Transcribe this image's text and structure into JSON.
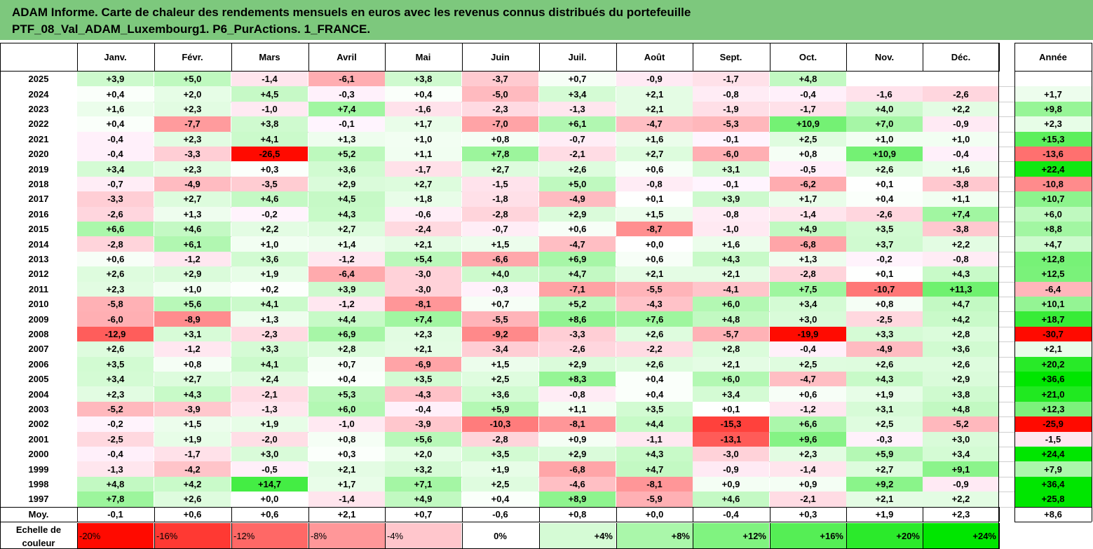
{
  "title": {
    "line1": "ADAM Informe. Carte de chaleur des rendements mensuels en euros avec les revenus connus distribués du portefeuille",
    "line2": "PTF_08_Val_ADAM_Luxembourg1. P6_PurActions. 1_FRANCE."
  },
  "colors": {
    "title_bg": "#7dc87d",
    "neg_max": "#ff0000",
    "pos_max": "#00e600",
    "neutral": "#ffffff"
  },
  "chart_data": {
    "type": "heatmap",
    "columns": [
      "Janv.",
      "Févr.",
      "Mars",
      "Avril",
      "Mai",
      "Juin",
      "Juil.",
      "Août",
      "Sept.",
      "Oct.",
      "Nov.",
      "Déc."
    ],
    "year_column": "Année",
    "rows": [
      {
        "label": "2025",
        "values": [
          "+3,9",
          "+5,0",
          "-1,4",
          "-6,1",
          "+3,8",
          "-3,7",
          "+0,7",
          "-0,9",
          "-1,7",
          "+4,8",
          "",
          ""
        ],
        "year": ""
      },
      {
        "label": "2024",
        "values": [
          "+0,4",
          "+2,0",
          "+4,5",
          "-0,3",
          "+0,4",
          "-5,0",
          "+3,4",
          "+2,1",
          "-0,8",
          "-0,4",
          "-1,6",
          "-2,6"
        ],
        "year": "+1,7"
      },
      {
        "label": "2023",
        "values": [
          "+1,6",
          "+2,3",
          "-1,0",
          "+7,4",
          "-1,6",
          "-2,3",
          "-1,3",
          "+2,1",
          "-1,9",
          "-1,7",
          "+4,0",
          "+2,2"
        ],
        "year": "+9,8"
      },
      {
        "label": "2022",
        "values": [
          "+0,4",
          "-7,7",
          "+3,8",
          "-0,1",
          "+1,7",
          "-7,0",
          "+6,1",
          "-4,7",
          "-5,3",
          "+10,9",
          "+7,0",
          "-0,9"
        ],
        "year": "+2,3"
      },
      {
        "label": "2021",
        "values": [
          "-0,4",
          "+2,3",
          "+4,1",
          "+1,3",
          "+1,0",
          "+0,8",
          "-0,7",
          "+1,6",
          "-0,1",
          "+2,5",
          "+1,0",
          "+1,0"
        ],
        "year": "+15,3"
      },
      {
        "label": "2020",
        "values": [
          "-0,4",
          "-3,3",
          "-26,5",
          "+5,2",
          "+1,1",
          "+7,8",
          "-2,1",
          "+2,7",
          "-6,0",
          "+0,8",
          "+10,9",
          "-0,4"
        ],
        "year": "-13,6"
      },
      {
        "label": "2019",
        "values": [
          "+3,4",
          "+2,3",
          "+0,3",
          "+3,6",
          "-1,7",
          "+2,7",
          "+2,6",
          "+0,6",
          "+3,1",
          "-0,5",
          "+2,6",
          "+1,6"
        ],
        "year": "+22,4"
      },
      {
        "label": "2018",
        "values": [
          "-0,7",
          "-4,9",
          "-3,5",
          "+2,9",
          "+2,7",
          "-1,5",
          "+5,0",
          "-0,8",
          "-0,1",
          "-6,2",
          "+0,1",
          "-3,8"
        ],
        "year": "-10,8"
      },
      {
        "label": "2017",
        "values": [
          "-3,3",
          "+2,7",
          "+4,6",
          "+4,5",
          "+1,8",
          "-1,8",
          "-4,9",
          "+0,1",
          "+3,9",
          "+1,7",
          "+0,4",
          "+1,1"
        ],
        "year": "+10,7"
      },
      {
        "label": "2016",
        "values": [
          "-2,6",
          "+1,3",
          "-0,2",
          "+4,3",
          "-0,6",
          "-2,8",
          "+2,9",
          "+1,5",
          "-0,8",
          "-1,4",
          "-2,6",
          "+7,4"
        ],
        "year": "+6,0"
      },
      {
        "label": "2015",
        "values": [
          "+6,6",
          "+4,6",
          "+2,2",
          "+2,7",
          "-2,4",
          "-0,7",
          "+0,6",
          "-8,7",
          "-1,0",
          "+4,9",
          "+3,5",
          "-3,8"
        ],
        "year": "+8,8"
      },
      {
        "label": "2014",
        "values": [
          "-2,8",
          "+6,1",
          "+1,0",
          "+1,4",
          "+2,1",
          "+1,5",
          "-4,7",
          "+0,0",
          "+1,6",
          "-6,8",
          "+3,7",
          "+2,2"
        ],
        "year": "+4,7"
      },
      {
        "label": "2013",
        "values": [
          "+0,6",
          "-1,2",
          "+3,6",
          "-1,2",
          "+5,4",
          "-6,6",
          "+6,9",
          "+0,6",
          "+4,3",
          "+1,3",
          "-0,2",
          "-0,8"
        ],
        "year": "+12,8"
      },
      {
        "label": "2012",
        "values": [
          "+2,6",
          "+2,9",
          "+1,9",
          "-6,4",
          "-3,0",
          "+4,0",
          "+4,7",
          "+2,1",
          "+2,1",
          "-2,8",
          "+0,1",
          "+4,3"
        ],
        "year": "+12,5"
      },
      {
        "label": "2011",
        "values": [
          "+2,3",
          "+1,0",
          "+0,2",
          "+3,9",
          "-3,0",
          "-0,3",
          "-7,1",
          "-5,5",
          "-4,1",
          "+7,5",
          "-10,7",
          "+11,3"
        ],
        "year": "-6,4"
      },
      {
        "label": "2010",
        "values": [
          "-5,8",
          "+5,6",
          "+4,1",
          "-1,2",
          "-8,1",
          "+0,7",
          "+5,2",
          "-4,3",
          "+6,0",
          "+3,4",
          "+0,8",
          "+4,7"
        ],
        "year": "+10,1"
      },
      {
        "label": "2009",
        "values": [
          "-6,0",
          "-8,9",
          "+1,3",
          "+4,4",
          "+7,4",
          "-5,5",
          "+8,6",
          "+7,6",
          "+4,8",
          "+3,0",
          "-2,5",
          "+4,2"
        ],
        "year": "+18,7"
      },
      {
        "label": "2008",
        "values": [
          "-12,9",
          "+3,1",
          "-2,3",
          "+6,9",
          "+2,3",
          "-9,2",
          "-3,3",
          "+2,6",
          "-5,7",
          "-19,9",
          "+3,3",
          "+2,8"
        ],
        "year": "-30,7"
      },
      {
        "label": "2007",
        "values": [
          "+2,6",
          "-1,2",
          "+3,3",
          "+2,8",
          "+2,1",
          "-3,4",
          "-2,6",
          "-2,2",
          "+2,8",
          "-0,4",
          "-4,9",
          "+3,6"
        ],
        "year": "+2,1"
      },
      {
        "label": "2006",
        "values": [
          "+3,5",
          "+0,8",
          "+4,1",
          "+0,7",
          "-6,9",
          "+1,5",
          "+2,9",
          "+2,6",
          "+2,1",
          "+2,5",
          "+2,6",
          "+2,6"
        ],
        "year": "+20,2"
      },
      {
        "label": "2005",
        "values": [
          "+3,4",
          "+2,7",
          "+2,4",
          "+0,4",
          "+3,5",
          "+2,5",
          "+8,3",
          "+0,4",
          "+6,0",
          "-4,7",
          "+4,3",
          "+2,9"
        ],
        "year": "+36,6"
      },
      {
        "label": "2004",
        "values": [
          "+2,3",
          "+4,3",
          "-2,1",
          "+5,3",
          "-4,3",
          "+3,6",
          "-0,8",
          "+0,4",
          "+3,4",
          "+0,6",
          "+1,9",
          "+3,8"
        ],
        "year": "+21,0"
      },
      {
        "label": "2003",
        "values": [
          "-5,2",
          "-3,9",
          "-1,3",
          "+6,0",
          "-0,4",
          "+5,9",
          "+1,1",
          "+3,5",
          "+0,1",
          "-1,2",
          "+3,1",
          "+4,8"
        ],
        "year": "+12,3"
      },
      {
        "label": "2002",
        "values": [
          "-0,2",
          "+1,5",
          "+1,9",
          "-1,0",
          "-3,9",
          "-10,3",
          "-8,1",
          "+4,4",
          "-15,3",
          "+6,6",
          "+2,5",
          "-5,2"
        ],
        "year": "-25,9"
      },
      {
        "label": "2001",
        "values": [
          "-2,5",
          "+1,9",
          "-2,0",
          "+0,8",
          "+5,6",
          "-2,8",
          "+0,9",
          "-1,1",
          "-13,1",
          "+9,6",
          "-0,3",
          "+3,0"
        ],
        "year": "-1,5"
      },
      {
        "label": "2000",
        "values": [
          "-0,4",
          "-1,7",
          "+3,0",
          "+0,3",
          "+2,0",
          "+3,5",
          "+2,9",
          "+4,3",
          "-3,0",
          "+2,3",
          "+5,9",
          "+3,4"
        ],
        "year": "+24,4"
      },
      {
        "label": "1999",
        "values": [
          "-1,3",
          "-4,2",
          "-0,5",
          "+2,1",
          "+3,2",
          "+1,9",
          "-6,8",
          "+4,7",
          "-0,9",
          "-1,4",
          "+2,7",
          "+9,1"
        ],
        "year": "+7,9"
      },
      {
        "label": "1998",
        "values": [
          "+4,8",
          "+4,2",
          "+14,7",
          "+1,7",
          "+7,1",
          "+2,5",
          "-4,6",
          "-8,1",
          "+0,9",
          "+0,9",
          "+9,2",
          "-0,9"
        ],
        "year": "+36,4"
      },
      {
        "label": "1997",
        "values": [
          "+7,8",
          "+2,6",
          "+0,0",
          "-1,4",
          "+4,9",
          "+0,4",
          "+8,9",
          "-5,9",
          "+4,6",
          "-2,1",
          "+2,1",
          "+2,2"
        ],
        "year": "+25,8"
      }
    ],
    "average_row": {
      "label": "Moy.",
      "values": [
        "-0,1",
        "+0,6",
        "+0,6",
        "+2,1",
        "+0,7",
        "-0,6",
        "+0,8",
        "+0,0",
        "-0,4",
        "+0,3",
        "+1,9",
        "+2,3"
      ],
      "year": "+8,6"
    },
    "color_scale": {
      "label_line1": "Echelle de",
      "label_line2": "couleur",
      "steps": [
        "-20%",
        "-16%",
        "-12%",
        "-8%",
        "-4%",
        "0%",
        "+4%",
        "+8%",
        "+12%",
        "+16%",
        "+20%",
        "+24%"
      ],
      "step_values": [
        -20,
        -16,
        -12,
        -8,
        -4,
        0,
        4,
        8,
        12,
        16,
        20,
        24
      ]
    }
  }
}
